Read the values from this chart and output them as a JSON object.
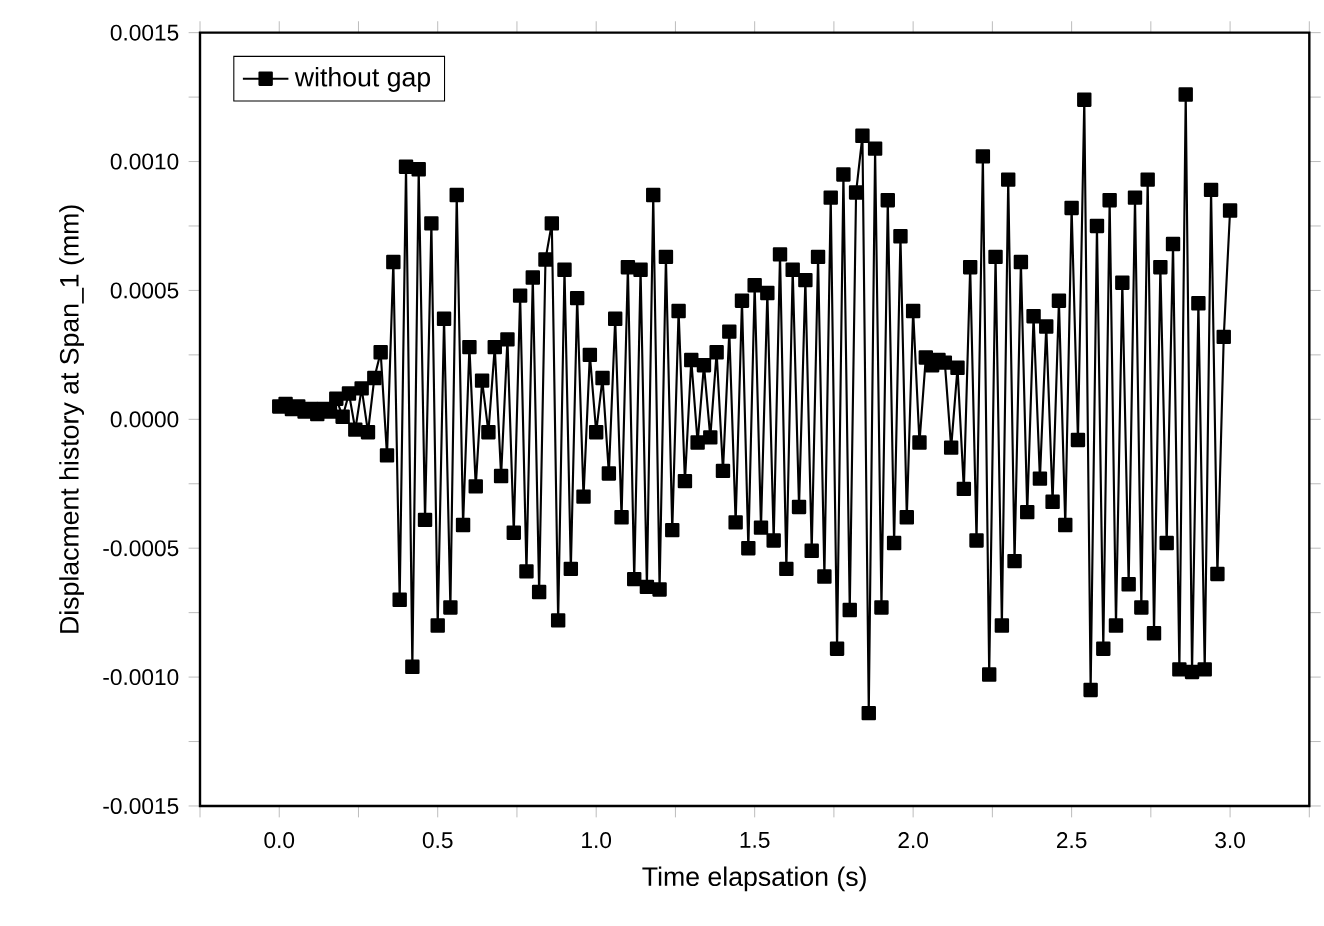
{
  "chart_data": {
    "type": "line",
    "xlabel": "Time elapsation (s)",
    "ylabel": "Displacment history at Span_1 (mm)",
    "xlim": [
      -0.25,
      3.25
    ],
    "ylim": [
      -0.0015,
      0.0015
    ],
    "xticks": [
      {
        "value": -0.25,
        "label": null
      },
      {
        "value": 0,
        "label": "0.0"
      },
      {
        "value": 0.25,
        "label": null
      },
      {
        "value": 0.5,
        "label": "0.5"
      },
      {
        "value": 0.75,
        "label": null
      },
      {
        "value": 1,
        "label": "1.0"
      },
      {
        "value": 1.25,
        "label": null
      },
      {
        "value": 1.5,
        "label": "1.5"
      },
      {
        "value": 1.75,
        "label": null
      },
      {
        "value": 2,
        "label": "2.0"
      },
      {
        "value": 2.25,
        "label": null
      },
      {
        "value": 2.5,
        "label": "2.5"
      },
      {
        "value": 2.75,
        "label": null
      },
      {
        "value": 3,
        "label": "3.0"
      },
      {
        "value": 3.25,
        "label": null
      }
    ],
    "yticks": [
      {
        "value": -0.0015,
        "label": "-0.0015"
      },
      {
        "value": -0.00125,
        "label": null
      },
      {
        "value": -0.001,
        "label": "-0.0010"
      },
      {
        "value": -0.00075,
        "label": null
      },
      {
        "value": -0.0005,
        "label": "-0.0005"
      },
      {
        "value": -0.00025,
        "label": null
      },
      {
        "value": 0,
        "label": "0.0000"
      },
      {
        "value": 0.00025,
        "label": null
      },
      {
        "value": 0.0005,
        "label": "0.0005"
      },
      {
        "value": 0.00075,
        "label": null
      },
      {
        "value": 0.001,
        "label": "0.0010"
      },
      {
        "value": 0.00125,
        "label": null
      },
      {
        "value": 0.0015,
        "label": "0.0015"
      }
    ],
    "grid": false,
    "legend": "top left",
    "marker": "square",
    "line_style": "solid",
    "x": [
      0,
      0.02,
      0.04,
      0.06,
      0.08,
      0.1,
      0.12,
      0.14,
      0.16,
      0.18,
      0.2,
      0.22,
      0.24,
      0.26,
      0.28,
      0.3,
      0.32,
      0.34,
      0.36,
      0.38,
      0.4,
      0.42,
      0.44,
      0.46,
      0.48,
      0.5,
      0.52,
      0.54,
      0.56,
      0.58,
      0.6,
      0.62,
      0.64,
      0.66,
      0.68,
      0.7,
      0.72,
      0.74,
      0.76,
      0.78,
      0.8,
      0.82,
      0.84,
      0.86,
      0.88,
      0.9,
      0.92,
      0.94,
      0.96,
      0.98,
      1,
      1.02,
      1.04,
      1.06,
      1.08,
      1.1,
      1.12,
      1.14,
      1.16,
      1.18,
      1.2,
      1.22,
      1.24,
      1.26,
      1.28,
      1.3,
      1.32,
      1.34,
      1.36,
      1.38,
      1.4,
      1.42,
      1.44,
      1.46,
      1.48,
      1.5,
      1.52,
      1.54,
      1.56,
      1.58,
      1.6,
      1.62,
      1.64,
      1.66,
      1.68,
      1.7,
      1.72,
      1.74,
      1.76,
      1.78,
      1.8,
      1.82,
      1.84,
      1.86,
      1.88,
      1.9,
      1.92,
      1.94,
      1.96,
      1.98,
      2,
      2.02,
      2.04,
      2.06,
      2.08,
      2.1,
      2.12,
      2.14,
      2.16,
      2.18,
      2.2,
      2.22,
      2.24,
      2.26,
      2.28,
      2.3,
      2.32,
      2.34,
      2.36,
      2.38,
      2.4,
      2.42,
      2.44,
      2.46,
      2.48,
      2.5,
      2.52,
      2.54,
      2.56,
      2.58,
      2.6,
      2.62,
      2.64,
      2.66,
      2.68,
      2.7,
      2.72,
      2.74,
      2.76,
      2.78,
      2.8,
      2.82,
      2.84,
      2.86,
      2.88,
      2.9,
      2.92,
      2.94,
      2.96,
      2.98,
      3
    ],
    "series": [
      {
        "name": "without gap",
        "color": "#000000",
        "values": [
          5e-05,
          6e-05,
          4e-05,
          5e-05,
          3e-05,
          4e-05,
          2e-05,
          4e-05,
          3e-05,
          8e-05,
          1e-05,
          0.0001,
          -4e-05,
          0.00012,
          -5e-05,
          0.00016,
          0.00026,
          -0.00014,
          0.00061,
          -0.0007,
          0.00098,
          -0.00096,
          0.00097,
          -0.00039,
          0.00076,
          -0.0008,
          0.00039,
          -0.00073,
          0.00087,
          -0.00041,
          0.00028,
          -0.00026,
          0.00015,
          -5e-05,
          0.00028,
          -0.00022,
          0.00031,
          -0.00044,
          0.00048,
          -0.00059,
          0.00055,
          -0.00067,
          0.00062,
          0.00076,
          -0.00078,
          0.00058,
          -0.00058,
          0.00047,
          -0.0003,
          0.00025,
          -5e-05,
          0.00016,
          -0.00021,
          0.00039,
          -0.00038,
          0.00059,
          -0.00062,
          0.00058,
          -0.00065,
          0.00087,
          -0.00066,
          0.00063,
          -0.00043,
          0.00042,
          -0.00024,
          0.00023,
          -9e-05,
          0.00021,
          -7e-05,
          0.00026,
          -0.0002,
          0.00034,
          -0.0004,
          0.00046,
          -0.0005,
          0.00052,
          -0.00042,
          0.00049,
          -0.00047,
          0.00064,
          -0.00058,
          0.00058,
          -0.00034,
          0.00054,
          -0.00051,
          0.00063,
          -0.00061,
          0.00086,
          -0.00089,
          0.00095,
          -0.00074,
          0.00088,
          0.0011,
          -0.00114,
          0.00105,
          -0.00073,
          0.00085,
          -0.00048,
          0.00071,
          -0.00038,
          0.00042,
          -9e-05,
          0.00024,
          0.00021,
          0.00023,
          0.00022,
          -0.00011,
          0.0002,
          -0.00027,
          0.00059,
          -0.00047,
          0.00102,
          -0.00099,
          0.00063,
          -0.0008,
          0.00093,
          -0.00055,
          0.00061,
          -0.00036,
          0.0004,
          -0.00023,
          0.00036,
          -0.00032,
          0.00046,
          -0.00041,
          0.00082,
          -8e-05,
          0.00124,
          -0.00105,
          0.00075,
          -0.00089,
          0.00085,
          -0.0008,
          0.00053,
          -0.00064,
          0.00086,
          -0.00073,
          0.00093,
          -0.00083,
          0.00059,
          -0.00048,
          0.00068,
          -0.00097,
          0.00126,
          -0.00098,
          0.00045,
          -0.00097,
          0.00089,
          -0.0006,
          0.00032,
          0.00081
        ]
      }
    ]
  }
}
